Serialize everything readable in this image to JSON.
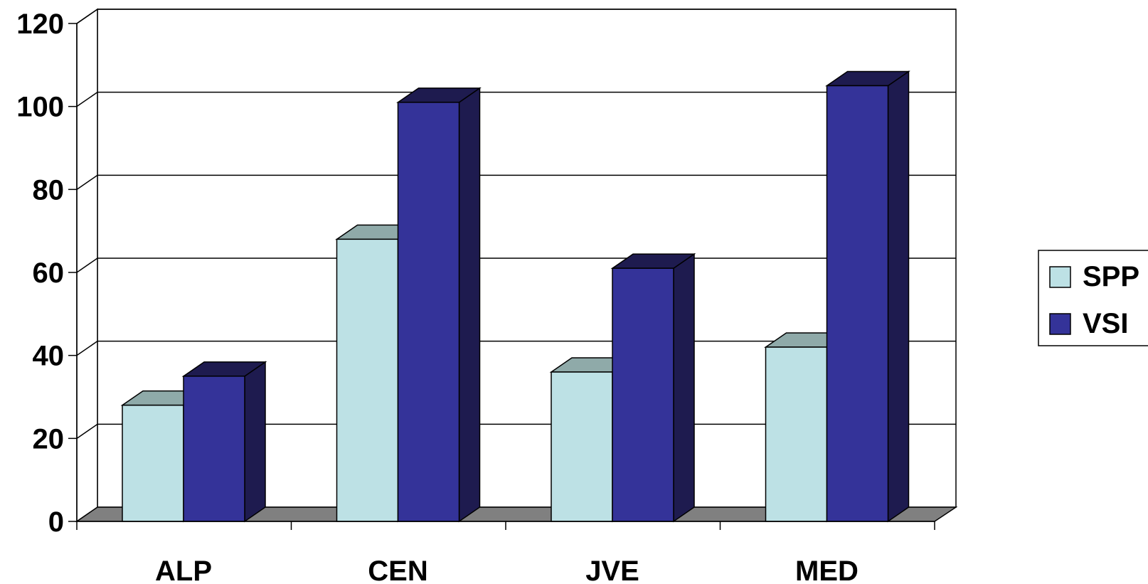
{
  "chart_data": {
    "type": "bar",
    "style": "3d-clustered",
    "categories": [
      "ALP",
      "CEN",
      "JVE",
      "MED"
    ],
    "series": [
      {
        "name": "SPP",
        "values": [
          28,
          68,
          36,
          42
        ],
        "color": "#bde1e5",
        "top_color": "#8faaa9"
      },
      {
        "name": "VSI",
        "values": [
          35,
          101,
          61,
          105
        ],
        "color": "#343399",
        "side_color": "#1e1b4f"
      }
    ],
    "ylim": [
      0,
      120
    ],
    "yticks": [
      0,
      20,
      40,
      60,
      80,
      100,
      120
    ],
    "grid": true,
    "legend": "right",
    "floor_color": "#808080"
  }
}
